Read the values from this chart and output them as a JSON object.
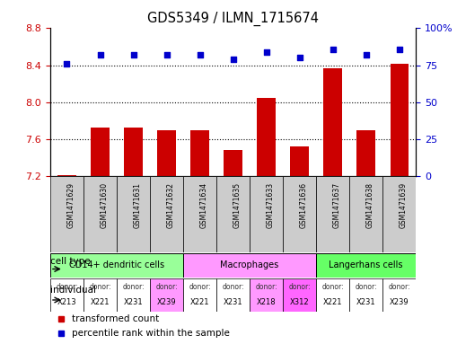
{
  "title": "GDS5349 / ILMN_1715674",
  "samples": [
    "GSM1471629",
    "GSM1471630",
    "GSM1471631",
    "GSM1471632",
    "GSM1471634",
    "GSM1471635",
    "GSM1471633",
    "GSM1471636",
    "GSM1471637",
    "GSM1471638",
    "GSM1471639"
  ],
  "transformed_count": [
    7.21,
    7.73,
    7.73,
    7.7,
    7.7,
    7.48,
    8.05,
    7.52,
    8.37,
    7.7,
    8.42
  ],
  "percentile_rank": [
    76,
    82,
    82,
    82,
    82,
    79,
    84,
    80,
    86,
    82,
    86
  ],
  "ylim_left": [
    7.2,
    8.8
  ],
  "ylim_right": [
    0,
    100
  ],
  "yticks_left": [
    7.2,
    7.6,
    8.0,
    8.4,
    8.8
  ],
  "yticks_right": [
    0,
    25,
    50,
    75,
    100
  ],
  "bar_color": "#CC0000",
  "dot_color": "#0000CC",
  "cell_types": [
    {
      "label": "CD14+ dendritic cells",
      "start": 0,
      "end": 4,
      "color": "#99FF99"
    },
    {
      "label": "Macrophages",
      "start": 4,
      "end": 8,
      "color": "#FF99FF"
    },
    {
      "label": "Langerhans cells",
      "start": 8,
      "end": 11,
      "color": "#66FF66"
    }
  ],
  "individuals": [
    {
      "donor": "X213",
      "col": 0,
      "color": "#FFFFFF"
    },
    {
      "donor": "X221",
      "col": 1,
      "color": "#FFFFFF"
    },
    {
      "donor": "X231",
      "col": 2,
      "color": "#FFFFFF"
    },
    {
      "donor": "X239",
      "col": 3,
      "color": "#FF99FF"
    },
    {
      "donor": "X221",
      "col": 4,
      "color": "#FFFFFF"
    },
    {
      "donor": "X231",
      "col": 5,
      "color": "#FFFFFF"
    },
    {
      "donor": "X218",
      "col": 6,
      "color": "#FF99FF"
    },
    {
      "donor": "X312",
      "col": 7,
      "color": "#FF66FF"
    },
    {
      "donor": "X221",
      "col": 8,
      "color": "#FFFFFF"
    },
    {
      "donor": "X231",
      "col": 9,
      "color": "#FFFFFF"
    },
    {
      "donor": "X239",
      "col": 10,
      "color": "#FFFFFF"
    }
  ],
  "bar_bottom": 7.2,
  "tick_label_color_left": "#CC0000",
  "tick_label_color_right": "#0000CC",
  "bg_color": "#FFFFFF",
  "sample_bg_color": "#CCCCCC",
  "legend_red": "transformed count",
  "legend_blue": "percentile rank within the sample",
  "dotted_gridlines": [
    7.6,
    8.0,
    8.4
  ]
}
